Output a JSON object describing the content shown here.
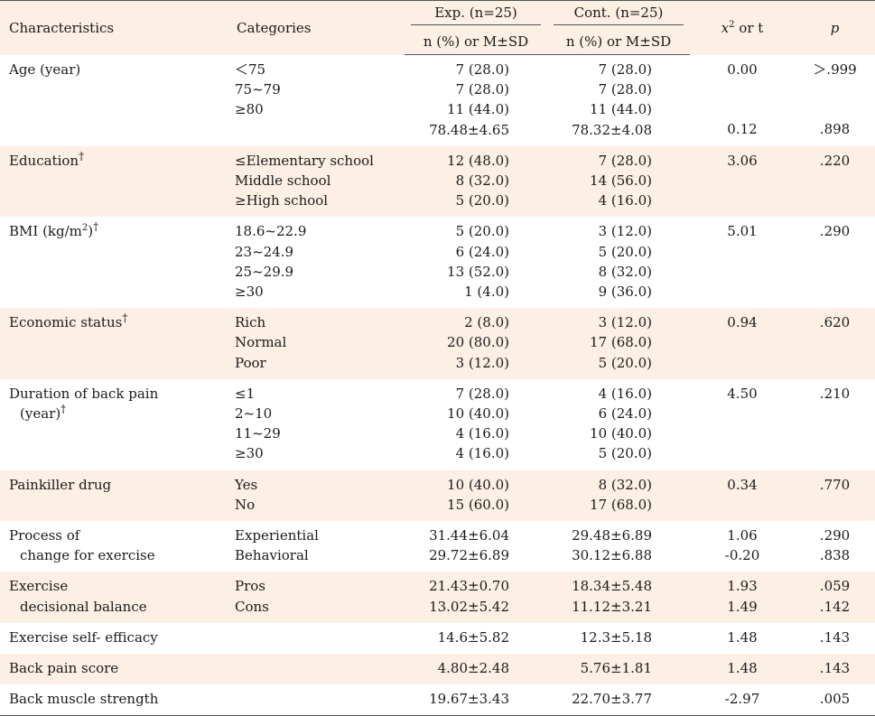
{
  "header": {
    "characteristics": "Characteristics",
    "categories": "Categories",
    "exp": "Exp. (n=25)",
    "cont": "Cont. (n=25)",
    "sub_exp": "n (%) or M±SD",
    "sub_cont": "n (%) or M±SD",
    "stat_symbol": "x",
    "stat_sup": "2",
    "stat_suffix": " or t",
    "p": "p"
  },
  "dagger": "†",
  "rows": [
    {
      "char": [
        "Age (year)"
      ],
      "cats": [
        "＜75",
        "75~79",
        "≥80",
        ""
      ],
      "exp": [
        "7 (28.0)",
        "7 (28.0)",
        "11 (44.0)",
        "78.48±4.65"
      ],
      "cont": [
        "7 (28.0)",
        "7 (28.0)",
        "11 (44.0)",
        "78.32±4.08"
      ],
      "stat": [
        "0.00",
        "",
        "",
        "0.12"
      ],
      "p": [
        "＞.999",
        "",
        "",
        ".898"
      ]
    },
    {
      "char": [
        "Education"
      ],
      "cats": [
        "≤Elementary school",
        "Middle school",
        "≥High school"
      ],
      "exp": [
        "12 (48.0)",
        "8 (32.0)",
        "5 (20.0)"
      ],
      "cont": [
        "7 (28.0)",
        "14 (56.0)",
        "4 (16.0)"
      ],
      "stat": [
        "3.06"
      ],
      "p": [
        ".220"
      ]
    },
    {
      "char_prefix": "BMI (kg/m",
      "char_sup": "2",
      "char_suffix": ")",
      "cats": [
        "18.6~22.9",
        "23~24.9",
        "25~29.9",
        "≥30"
      ],
      "exp": [
        "5 (20.0)",
        "6 (24.0)",
        "13 (52.0)",
        "1 (4.0)"
      ],
      "cont": [
        "3 (12.0)",
        "5 (20.0)",
        "8 (32.0)",
        "9 (36.0)"
      ],
      "stat": [
        "5.01"
      ],
      "p": [
        ".290"
      ]
    },
    {
      "char": [
        "Economic status"
      ],
      "cats": [
        "Rich",
        "Normal",
        "Poor"
      ],
      "exp": [
        "2 (8.0)",
        "20 (80.0)",
        "3 (12.0)"
      ],
      "cont": [
        "3 (12.0)",
        "17 (68.0)",
        "5 (20.0)"
      ],
      "stat": [
        "0.94"
      ],
      "p": [
        ".620"
      ]
    },
    {
      "char": [
        "Duration of back pain",
        "(year)"
      ],
      "cats": [
        "≤1",
        "2~10",
        "11~29",
        "≥30"
      ],
      "exp": [
        "7 (28.0)",
        "10 (40.0)",
        "4 (16.0)",
        "4 (16.0)"
      ],
      "cont": [
        "4 (16.0)",
        "6 (24.0)",
        "10 (40.0)",
        "5 (20.0)"
      ],
      "stat": [
        "4.50"
      ],
      "p": [
        ".210"
      ]
    },
    {
      "char": [
        "Painkiller drug"
      ],
      "cats": [
        "Yes",
        "No"
      ],
      "exp": [
        "10 (40.0)",
        "15 (60.0)"
      ],
      "cont": [
        "8 (32.0)",
        "17 (68.0)"
      ],
      "stat": [
        "0.34"
      ],
      "p": [
        ".770"
      ]
    },
    {
      "char": [
        "Process of",
        "change for exercise"
      ],
      "cats": [
        "Experiential",
        "Behavioral"
      ],
      "exp": [
        "31.44±6.04",
        "29.72±6.89"
      ],
      "cont": [
        "29.48±6.89",
        "30.12±6.88"
      ],
      "stat": [
        "1.06",
        "-0.20"
      ],
      "p": [
        ".290",
        ".838"
      ]
    },
    {
      "char": [
        "Exercise",
        "decisional balance"
      ],
      "cats": [
        "Pros",
        "Cons"
      ],
      "exp": [
        "21.43±0.70",
        "13.02±5.42"
      ],
      "cont": [
        "18.34±5.48",
        "11.12±3.21"
      ],
      "stat": [
        "1.93",
        "1.49"
      ],
      "p": [
        ".059",
        ".142"
      ]
    },
    {
      "char": [
        "Exercise self- efficacy"
      ],
      "cats": [
        ""
      ],
      "exp": [
        "14.6±5.82"
      ],
      "cont": [
        "12.3±5.18"
      ],
      "stat": [
        "1.48"
      ],
      "p": [
        ".143"
      ]
    },
    {
      "char": [
        "Back pain score"
      ],
      "cats": [
        ""
      ],
      "exp": [
        "4.80±2.48"
      ],
      "cont": [
        "5.76±1.81"
      ],
      "stat": [
        "1.48"
      ],
      "p": [
        ".143"
      ]
    },
    {
      "char": [
        "Back muscle strength"
      ],
      "cats": [
        ""
      ],
      "exp": [
        "19.67±3.43"
      ],
      "cont": [
        "22.70±3.77"
      ],
      "stat": [
        "-2.97"
      ],
      "p": [
        ".005"
      ]
    }
  ]
}
